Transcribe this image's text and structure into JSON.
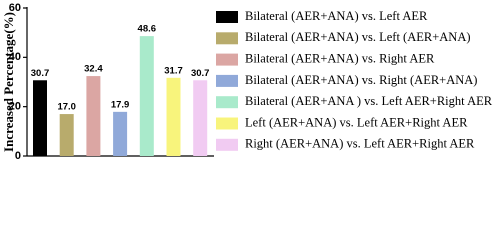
{
  "chart_data": {
    "type": "bar",
    "y_label": "Increased Percentage(%)",
    "ylim": [
      0,
      60
    ],
    "yticks": [
      0,
      20,
      40,
      60
    ],
    "series": [
      {
        "name": "Bilateral (AER+ANA) vs. Left AER",
        "color": "#000000",
        "values": [
          30.7
        ],
        "value_labels": [
          "30.7"
        ]
      },
      {
        "name": "Bilateral (AER+ANA) vs. Left (AER+ANA)",
        "color": "#b8ab6c",
        "values": [
          17.0
        ],
        "value_labels": [
          "17.0"
        ]
      },
      {
        "name": "Bilateral (AER+ANA) vs. Right AER",
        "color": "#dba6a3",
        "values": [
          32.4
        ],
        "value_labels": [
          "32.4"
        ]
      },
      {
        "name": "Bilateral (AER+ANA) vs. Right (AER+ANA)",
        "color": "#90a9d9",
        "values": [
          17.9
        ],
        "value_labels": [
          "17.9"
        ]
      },
      {
        "name": "Bilateral (AER+ANA ) vs. Left AER+Right AER",
        "color": "#a9eacb",
        "values": [
          48.6
        ],
        "value_labels": [
          "48.6"
        ]
      },
      {
        "name": "Left (AER+ANA) vs. Left AER+Right AER",
        "color": "#f8f47c",
        "values": [
          31.7
        ],
        "value_labels": [
          "31.7"
        ]
      },
      {
        "name": "Right (AER+ANA) vs. Left AER+Right AER",
        "color": "#f1cbf2",
        "values": [
          30.7
        ],
        "value_labels": [
          "30.7"
        ]
      }
    ]
  }
}
